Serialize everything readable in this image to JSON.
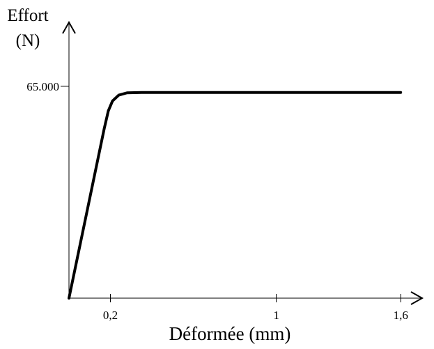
{
  "chart_data": {
    "type": "line",
    "ylabel": [
      "Effort",
      "(N)"
    ],
    "xlabel": "Déformée (mm)",
    "x": [
      0,
      0.17,
      0.19,
      0.21,
      0.24,
      0.28,
      0.35,
      1.6
    ],
    "series": [
      {
        "color": "#000000",
        "values": [
          0,
          52000,
          57500,
          60500,
          62300,
          63000,
          63100,
          63100
        ]
      }
    ],
    "xlim": [
      0,
      1.68
    ],
    "ylim": [
      0,
      84000
    ],
    "xticks": [
      {
        "value": 0.2,
        "label": "0,2"
      },
      1,
      {
        "value": 1.6,
        "label": "1,6"
      }
    ],
    "yticks": [
      {
        "value": 65000,
        "label": "65.000"
      }
    ],
    "grid": false
  }
}
